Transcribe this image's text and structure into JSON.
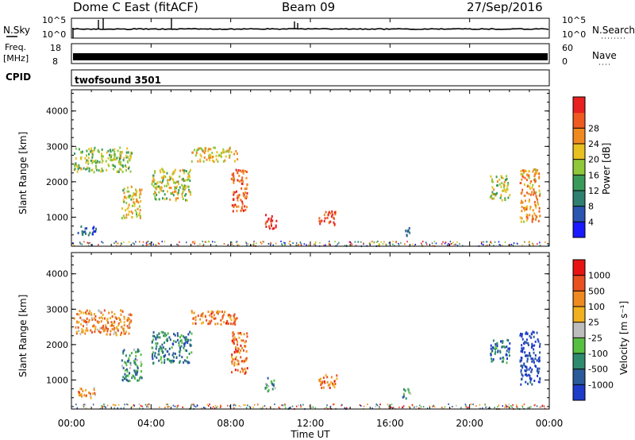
{
  "header": {
    "station": "Dome C East (fitACF)",
    "beam": "Beam 09",
    "date": "27/Sep/2016"
  },
  "top_panels": {
    "nsky_label": "N.Sky",
    "nsky_ticks": [
      "10^5",
      "10^0"
    ],
    "nsearch_label": "N.Search",
    "nsearch_ticks": [
      "10^5",
      "10^0"
    ],
    "freq_label": "Freq.",
    "freq_unit": "[MHz]",
    "freq_ticks": [
      "18",
      "8"
    ],
    "nave_label": "Nave",
    "nave_ticks": [
      "60",
      "0"
    ],
    "cpid_label": "CPID",
    "cpid_value": "twofsound 3501"
  },
  "chart_data": [
    {
      "type": "heatmap",
      "name": "power-panel",
      "ylabel": "Slant Range [km]",
      "xlabel": "Time UT",
      "xlim_hours": [
        0,
        24
      ],
      "ylim_km": [
        180,
        4600
      ],
      "y_ticks": [
        1000,
        2000,
        3000,
        4000
      ],
      "x_ticks": [
        "00:00",
        "04:00",
        "08:00",
        "12:00",
        "16:00",
        "20:00",
        "00:00"
      ],
      "colorbar": {
        "label": "Power [dB]",
        "ticks": [
          "4",
          "8",
          "12",
          "16",
          "20",
          "24",
          "28"
        ],
        "colors": [
          "#1a1aff",
          "#2a55b0",
          "#2f8070",
          "#3a9a5a",
          "#8fc83a",
          "#e8c020",
          "#f08a20",
          "#ee5a20",
          "#e82020"
        ]
      },
      "echo_regions": [
        {
          "t": [
            0.3,
            1.2
          ],
          "r": [
            500,
            800
          ],
          "level": 0.2
        },
        {
          "t": [
            0.1,
            3.0
          ],
          "r": [
            2300,
            3000
          ],
          "level": 0.5
        },
        {
          "t": [
            2.5,
            3.5
          ],
          "r": [
            1000,
            1900
          ],
          "level": 0.6
        },
        {
          "t": [
            4.0,
            6.0
          ],
          "r": [
            1500,
            2400
          ],
          "level": 0.55
        },
        {
          "t": [
            6.0,
            8.3
          ],
          "r": [
            2600,
            3000
          ],
          "level": 0.6
        },
        {
          "t": [
            8.0,
            8.8
          ],
          "r": [
            1200,
            2400
          ],
          "level": 0.85
        },
        {
          "t": [
            9.7,
            10.3
          ],
          "r": [
            700,
            1100
          ],
          "level": 0.95
        },
        {
          "t": [
            12.4,
            13.3
          ],
          "r": [
            800,
            1200
          ],
          "level": 0.85
        },
        {
          "t": [
            16.6,
            17.0
          ],
          "r": [
            500,
            800
          ],
          "level": 0.3
        },
        {
          "t": [
            21.0,
            22.0
          ],
          "r": [
            1500,
            2200
          ],
          "level": 0.55
        },
        {
          "t": [
            22.5,
            23.5
          ],
          "r": [
            900,
            2400
          ],
          "level": 0.7
        }
      ]
    },
    {
      "type": "heatmap",
      "name": "velocity-panel",
      "ylabel": "Slant Range [km]",
      "xlabel": "Time UT",
      "xlim_hours": [
        0,
        24
      ],
      "ylim_km": [
        180,
        4600
      ],
      "y_ticks": [
        1000,
        2000,
        3000,
        4000
      ],
      "x_ticks": [
        "00:00",
        "04:00",
        "08:00",
        "12:00",
        "16:00",
        "20:00",
        "00:00"
      ],
      "colorbar": {
        "label": "Velocity [m s⁻¹]",
        "ticks": [
          "1000",
          "500",
          "100",
          "25",
          "-25",
          "-100",
          "-500",
          "-1000"
        ],
        "colors": [
          "#1e3cc8",
          "#2a5a9a",
          "#2e8a6e",
          "#58c040",
          "#bdbdbd",
          "#f0b020",
          "#ee8a20",
          "#e85020",
          "#e81414"
        ]
      },
      "echo_regions": [
        {
          "t": [
            0.3,
            1.2
          ],
          "r": [
            500,
            800
          ],
          "level": 0.65
        },
        {
          "t": [
            0.1,
            3.0
          ],
          "r": [
            2300,
            3000
          ],
          "level": 0.7
        },
        {
          "t": [
            2.5,
            3.5
          ],
          "r": [
            1000,
            1900
          ],
          "level": 0.3
        },
        {
          "t": [
            4.0,
            6.0
          ],
          "r": [
            1500,
            2400
          ],
          "level": 0.25
        },
        {
          "t": [
            6.0,
            8.3
          ],
          "r": [
            2600,
            3000
          ],
          "level": 0.75
        },
        {
          "t": [
            8.0,
            8.8
          ],
          "r": [
            1200,
            2400
          ],
          "level": 0.75
        },
        {
          "t": [
            9.7,
            10.3
          ],
          "r": [
            700,
            1100
          ],
          "level": 0.3
        },
        {
          "t": [
            12.4,
            13.3
          ],
          "r": [
            800,
            1200
          ],
          "level": 0.75
        },
        {
          "t": [
            16.6,
            17.0
          ],
          "r": [
            500,
            800
          ],
          "level": 0.3
        },
        {
          "t": [
            21.0,
            22.0
          ],
          "r": [
            1500,
            2200
          ],
          "level": 0.2
        },
        {
          "t": [
            22.5,
            23.5
          ],
          "r": [
            900,
            2400
          ],
          "level": 0.05
        }
      ]
    }
  ]
}
